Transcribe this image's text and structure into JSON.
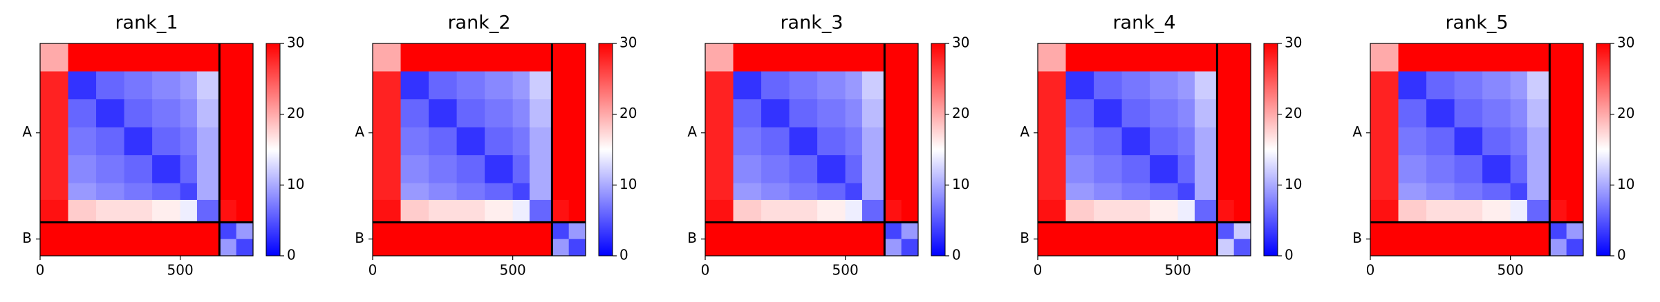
{
  "chart_data": [
    {
      "type": "heatmap",
      "title": "rank_1",
      "bins": [
        0,
        100,
        200,
        300,
        400,
        500,
        560,
        640,
        700,
        760
      ],
      "z": [
        [
          20,
          30,
          30,
          30,
          30,
          30,
          30,
          30,
          30
        ],
        [
          28,
          3,
          6,
          7,
          8,
          9,
          12,
          30,
          30
        ],
        [
          28,
          6,
          3,
          6,
          7,
          8,
          11,
          30,
          30
        ],
        [
          28,
          7,
          6,
          3,
          6,
          7,
          10,
          30,
          30
        ],
        [
          28,
          8,
          7,
          6,
          3,
          6,
          10,
          30,
          30
        ],
        [
          28,
          9,
          8,
          7,
          6,
          4,
          10,
          30,
          30
        ],
        [
          29,
          18,
          17,
          17,
          16,
          14,
          6,
          29,
          30
        ],
        [
          30,
          30,
          30,
          30,
          30,
          30,
          30,
          4,
          9
        ],
        [
          30,
          30,
          30,
          30,
          30,
          30,
          30,
          9,
          4
        ]
      ],
      "xlim": [
        0,
        760
      ],
      "ylim": [
        760,
        0
      ],
      "xticks": [
        0,
        500
      ],
      "yticks": [
        {
          "value": 320,
          "label": "A"
        },
        {
          "value": 700,
          "label": "B"
        }
      ],
      "boundaries": [
        640
      ],
      "clim": [
        0,
        30
      ],
      "cticks": [
        0,
        10,
        20,
        30
      ],
      "colormap": [
        "#0000ff",
        "#ffffff",
        "#ff0000"
      ]
    },
    {
      "type": "heatmap",
      "title": "rank_2",
      "bins": [
        0,
        100,
        200,
        300,
        400,
        500,
        560,
        640,
        700,
        760
      ],
      "z": [
        [
          20,
          30,
          30,
          30,
          30,
          30,
          30,
          30,
          30
        ],
        [
          28,
          3,
          6,
          7,
          8,
          9,
          12,
          30,
          30
        ],
        [
          28,
          6,
          3,
          6,
          7,
          8,
          11,
          30,
          30
        ],
        [
          28,
          7,
          6,
          3,
          6,
          7,
          10,
          30,
          30
        ],
        [
          28,
          8,
          7,
          6,
          3,
          6,
          10,
          30,
          30
        ],
        [
          28,
          9,
          8,
          7,
          6,
          4,
          10,
          30,
          30
        ],
        [
          29,
          18,
          17,
          17,
          16,
          14,
          6,
          29,
          30
        ],
        [
          30,
          30,
          30,
          30,
          30,
          30,
          30,
          4,
          9
        ],
        [
          30,
          30,
          30,
          30,
          30,
          30,
          30,
          9,
          4
        ]
      ],
      "xlim": [
        0,
        760
      ],
      "ylim": [
        760,
        0
      ],
      "xticks": [
        0,
        500
      ],
      "yticks": [
        {
          "value": 320,
          "label": "A"
        },
        {
          "value": 700,
          "label": "B"
        }
      ],
      "boundaries": [
        640
      ],
      "clim": [
        0,
        30
      ],
      "cticks": [
        0,
        10,
        20,
        30
      ],
      "colormap": [
        "#0000ff",
        "#ffffff",
        "#ff0000"
      ]
    },
    {
      "type": "heatmap",
      "title": "rank_3",
      "bins": [
        0,
        100,
        200,
        300,
        400,
        500,
        560,
        640,
        700,
        760
      ],
      "z": [
        [
          20,
          30,
          30,
          30,
          30,
          30,
          30,
          30,
          30
        ],
        [
          28,
          3,
          6,
          7,
          8,
          9,
          12,
          30,
          30
        ],
        [
          28,
          6,
          3,
          6,
          7,
          8,
          11,
          30,
          30
        ],
        [
          28,
          7,
          6,
          3,
          6,
          7,
          10,
          30,
          30
        ],
        [
          28,
          8,
          7,
          6,
          3,
          6,
          10,
          30,
          30
        ],
        [
          28,
          9,
          8,
          7,
          6,
          4,
          10,
          30,
          30
        ],
        [
          29,
          18,
          17,
          17,
          16,
          14,
          6,
          29,
          30
        ],
        [
          30,
          30,
          30,
          30,
          30,
          30,
          30,
          4,
          9
        ],
        [
          30,
          30,
          30,
          30,
          30,
          30,
          30,
          9,
          4
        ]
      ],
      "xlim": [
        0,
        760
      ],
      "ylim": [
        760,
        0
      ],
      "xticks": [
        0,
        500
      ],
      "yticks": [
        {
          "value": 320,
          "label": "A"
        },
        {
          "value": 700,
          "label": "B"
        }
      ],
      "boundaries": [
        640
      ],
      "clim": [
        0,
        30
      ],
      "cticks": [
        0,
        10,
        20,
        30
      ],
      "colormap": [
        "#0000ff",
        "#ffffff",
        "#ff0000"
      ]
    },
    {
      "type": "heatmap",
      "title": "rank_4",
      "bins": [
        0,
        100,
        200,
        300,
        400,
        500,
        560,
        640,
        700,
        760
      ],
      "z": [
        [
          20,
          30,
          30,
          30,
          30,
          30,
          30,
          30,
          30
        ],
        [
          28,
          3,
          6,
          7,
          8,
          9,
          12,
          30,
          30
        ],
        [
          28,
          6,
          3,
          6,
          7,
          8,
          11,
          30,
          30
        ],
        [
          28,
          7,
          6,
          3,
          6,
          7,
          10,
          30,
          30
        ],
        [
          28,
          8,
          7,
          6,
          3,
          6,
          10,
          30,
          30
        ],
        [
          28,
          9,
          8,
          7,
          6,
          4,
          10,
          30,
          30
        ],
        [
          29,
          18,
          17,
          17,
          16,
          14,
          6,
          29,
          30
        ],
        [
          30,
          30,
          30,
          30,
          30,
          30,
          30,
          5,
          12
        ],
        [
          30,
          30,
          30,
          30,
          30,
          30,
          30,
          12,
          5
        ]
      ],
      "xlim": [
        0,
        760
      ],
      "ylim": [
        760,
        0
      ],
      "xticks": [
        0,
        500
      ],
      "yticks": [
        {
          "value": 320,
          "label": "A"
        },
        {
          "value": 700,
          "label": "B"
        }
      ],
      "boundaries": [
        640
      ],
      "clim": [
        0,
        30
      ],
      "cticks": [
        0,
        10,
        20,
        30
      ],
      "colormap": [
        "#0000ff",
        "#ffffff",
        "#ff0000"
      ]
    },
    {
      "type": "heatmap",
      "title": "rank_5",
      "bins": [
        0,
        100,
        200,
        300,
        400,
        500,
        560,
        640,
        700,
        760
      ],
      "z": [
        [
          20,
          30,
          30,
          30,
          30,
          30,
          30,
          30,
          30
        ],
        [
          28,
          3,
          6,
          7,
          8,
          9,
          12,
          30,
          30
        ],
        [
          28,
          6,
          3,
          6,
          7,
          8,
          11,
          30,
          30
        ],
        [
          28,
          7,
          6,
          3,
          6,
          7,
          10,
          30,
          30
        ],
        [
          28,
          8,
          7,
          6,
          3,
          6,
          10,
          30,
          30
        ],
        [
          28,
          9,
          8,
          7,
          6,
          4,
          10,
          30,
          30
        ],
        [
          29,
          18,
          17,
          17,
          16,
          14,
          6,
          29,
          30
        ],
        [
          30,
          30,
          30,
          30,
          30,
          30,
          30,
          4,
          9
        ],
        [
          30,
          30,
          30,
          30,
          30,
          30,
          30,
          9,
          4
        ]
      ],
      "xlim": [
        0,
        760
      ],
      "ylim": [
        760,
        0
      ],
      "xticks": [
        0,
        500
      ],
      "yticks": [
        {
          "value": 320,
          "label": "A"
        },
        {
          "value": 700,
          "label": "B"
        }
      ],
      "boundaries": [
        640
      ],
      "clim": [
        0,
        30
      ],
      "cticks": [
        0,
        10,
        20,
        30
      ],
      "colormap": [
        "#0000ff",
        "#ffffff",
        "#ff0000"
      ]
    }
  ]
}
